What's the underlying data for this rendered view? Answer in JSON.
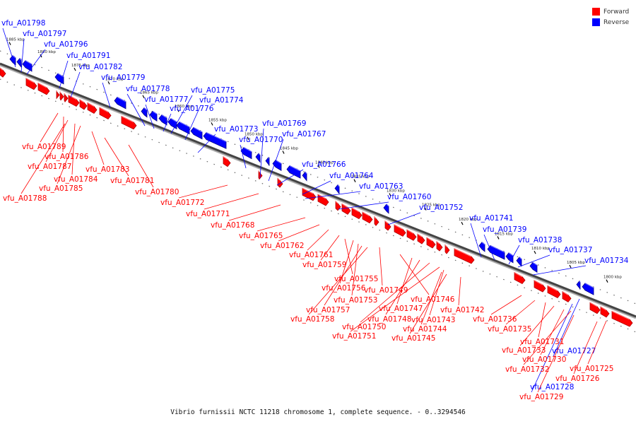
{
  "caption": "Vibrio furnissii NCTC 11218 chromosome 1, complete sequence. - 0..3294546",
  "legend": [
    {
      "label": "Forward",
      "color": "#ff0000"
    },
    {
      "label": "Reverse",
      "color": "#0000ff"
    }
  ],
  "ticks": [
    "1885 kbp",
    "1880 kbp",
    "1875 kbp",
    "1870 kbp",
    "1865 kbp",
    "1860 kbp",
    "1855 kbp",
    "1850 kbp",
    "1845 kbp",
    "1840 kbp",
    "1835 kbp",
    "1830 kbp",
    "1825 kbp",
    "1820 kbp",
    "1815 kbp",
    "1810 kbp",
    "1805 kbp",
    "1800 kbp"
  ],
  "reverse_genes": [
    "vfu_A01798",
    "vfu_A01797",
    "vfu_A01796",
    "vfu_A01791",
    "vfu_A01782",
    "vfu_A01779",
    "vfu_A01778",
    "vfu_A01777",
    "vfu_A01776",
    "vfu_A01775",
    "vfu_A01774",
    "vfu_A01773",
    "vfu_A01770",
    "vfu_A01769",
    "vfu_A01767",
    "vfu_A01766",
    "vfu_A01764",
    "vfu_A01763",
    "vfu_A01760",
    "vfu_A01752",
    "vfu_A01741",
    "vfu_A01739",
    "vfu_A01738",
    "vfu_A01737",
    "vfu_A01734",
    "vfu_A01727",
    "vfu_A01728"
  ],
  "forward_genes": [
    "vfu_A01789",
    "vfu_A01786",
    "vfu_A01787",
    "vfu_A01784",
    "vfu_A01785",
    "vfu_A01788",
    "vfu_A01783",
    "vfu_A01781",
    "vfu_A01780",
    "vfu_A01772",
    "vfu_A01771",
    "vfu_A01768",
    "vfu_A01765",
    "vfu_A01762",
    "vfu_A01761",
    "vfu_A01759",
    "vfu_A01755",
    "vfu_A01756",
    "vfu_A01753",
    "vfu_A01757",
    "vfu_A01758",
    "vfu_A01749",
    "vfu_A01746",
    "vfu_A01747",
    "vfu_A01748",
    "vfu_A01750",
    "vfu_A01751",
    "vfu_A01743",
    "vfu_A01744",
    "vfu_A01745",
    "vfu_A01742",
    "vfu_A01736",
    "vfu_A01735",
    "vfu_A01731",
    "vfu_A01733",
    "vfu_A01730",
    "vfu_A01732",
    "vfu_A01725",
    "vfu_A01726",
    "vfu_A01729"
  ]
}
